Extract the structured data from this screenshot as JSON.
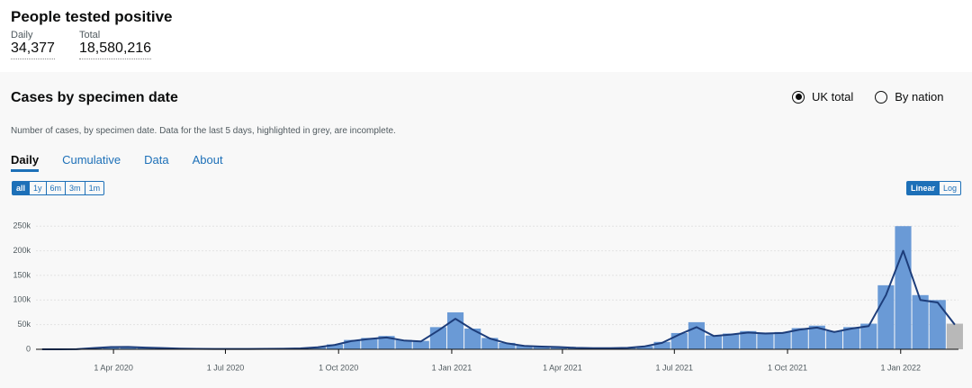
{
  "header": {
    "title": "People tested positive",
    "metrics": [
      {
        "label": "Daily",
        "value": "34,377"
      },
      {
        "label": "Total",
        "value": "18,580,216"
      }
    ]
  },
  "card": {
    "title": "Cases by specimen date",
    "options": [
      "UK total",
      "By nation"
    ],
    "selected_option": 0,
    "description": "Number of cases, by specimen date. Data for the last 5 days, highlighted in grey, are incomplete.",
    "tabs": [
      "Daily",
      "Cumulative",
      "Data",
      "About"
    ],
    "active_tab": 0,
    "ranges": [
      "all",
      "1y",
      "6m",
      "3m",
      "1m"
    ],
    "active_range": 0,
    "scales": [
      "Linear",
      "Log"
    ],
    "active_scale": 0
  },
  "chart_data": {
    "type": "bar",
    "log_scale": false,
    "grid": true,
    "x": [
      "2020-02-03",
      "2020-02-17",
      "2020-03-02",
      "2020-03-16",
      "2020-03-30",
      "2020-04-13",
      "2020-04-27",
      "2020-05-11",
      "2020-05-25",
      "2020-06-08",
      "2020-06-22",
      "2020-07-06",
      "2020-07-20",
      "2020-08-03",
      "2020-08-17",
      "2020-08-31",
      "2020-09-14",
      "2020-09-28",
      "2020-10-12",
      "2020-10-26",
      "2020-11-09",
      "2020-11-23",
      "2020-12-07",
      "2020-12-21",
      "2021-01-04",
      "2021-01-18",
      "2021-02-01",
      "2021-02-15",
      "2021-03-01",
      "2021-03-15",
      "2021-03-29",
      "2021-04-12",
      "2021-04-26",
      "2021-05-10",
      "2021-05-24",
      "2021-06-07",
      "2021-06-21",
      "2021-07-05",
      "2021-07-19",
      "2021-08-02",
      "2021-08-16",
      "2021-08-30",
      "2021-09-13",
      "2021-09-27",
      "2021-10-11",
      "2021-10-25",
      "2021-11-08",
      "2021-11-22",
      "2021-12-06",
      "2021-12-20",
      "2022-01-03",
      "2022-01-17",
      "2022-01-31",
      "2022-02-14"
    ],
    "values": [
      0,
      10,
      250,
      2800,
      4800,
      5000,
      3600,
      2600,
      1600,
      1100,
      850,
      750,
      750,
      950,
      1200,
      2000,
      4500,
      10000,
      19000,
      23000,
      27000,
      19000,
      17000,
      45000,
      75000,
      42000,
      23000,
      13000,
      7500,
      6000,
      4800,
      3200,
      2400,
      2400,
      3300,
      6500,
      15000,
      33000,
      55000,
      28000,
      32000,
      37000,
      34000,
      35000,
      43000,
      48000,
      37000,
      45000,
      52000,
      130000,
      250000,
      110000,
      100000,
      52000
    ],
    "color": "#6a9ad6",
    "incomplete_color": "#b8b8b8",
    "line_values": [
      0,
      10,
      200,
      2500,
      4500,
      4800,
      3500,
      2500,
      1500,
      1000,
      800,
      700,
      700,
      900,
      1100,
      1800,
      4000,
      9000,
      17000,
      21000,
      24000,
      18000,
      16000,
      38000,
      62000,
      40000,
      22000,
      12000,
      7000,
      5500,
      4500,
      3000,
      2200,
      2200,
      3000,
      6000,
      13000,
      30000,
      45000,
      27000,
      30000,
      34000,
      32000,
      33000,
      40000,
      44000,
      35000,
      42000,
      47000,
      110000,
      200000,
      100000,
      95000,
      50000
    ],
    "line_color": "#1d3d7a",
    "xlim": [
      "2020-01-29",
      "2022-02-17"
    ],
    "xticks": [
      {
        "value": "2020-04-01",
        "label": "1 Apr 2020"
      },
      {
        "value": "2020-07-01",
        "label": "1 Jul 2020"
      },
      {
        "value": "2020-10-01",
        "label": "1 Oct 2020"
      },
      {
        "value": "2021-01-01",
        "label": "1 Jan 2021"
      },
      {
        "value": "2021-04-01",
        "label": "1 Apr 2021"
      },
      {
        "value": "2021-07-01",
        "label": "1 Jul 2021"
      },
      {
        "value": "2021-10-01",
        "label": "1 Oct 2021"
      },
      {
        "value": "2022-01-01",
        "label": "1 Jan 2022"
      }
    ],
    "ylim": [
      0,
      265000
    ],
    "yticks": [
      0,
      {
        "value": 50000,
        "label": "50k"
      },
      {
        "value": 100000,
        "label": "100k"
      },
      {
        "value": 150000,
        "label": "150k"
      },
      {
        "value": 200000,
        "label": "200k"
      },
      {
        "value": 250000,
        "label": "250k"
      }
    ]
  }
}
